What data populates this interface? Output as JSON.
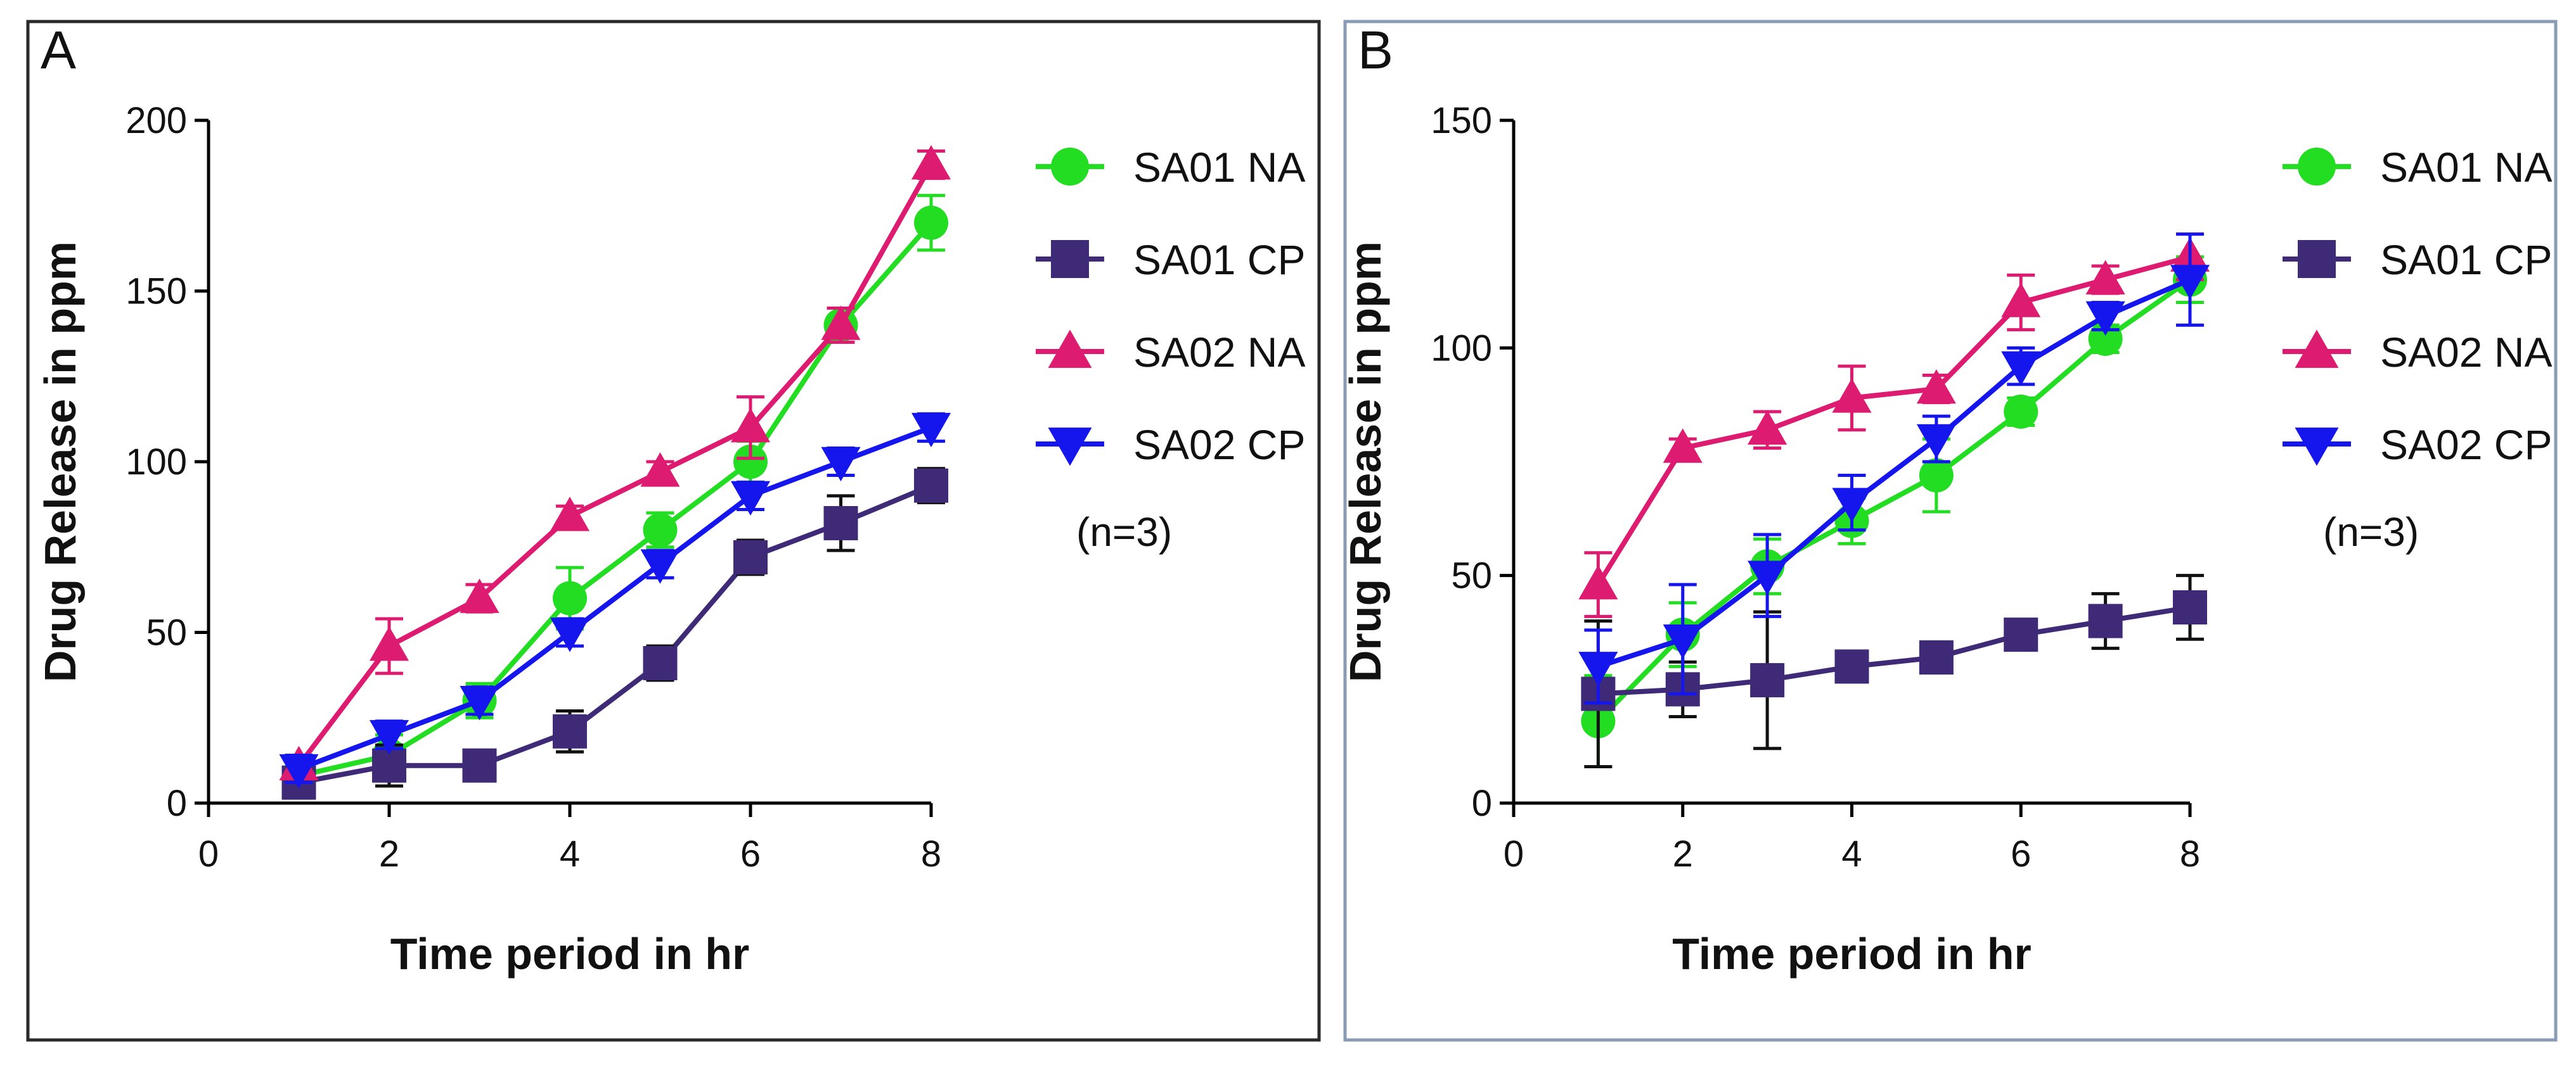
{
  "chart_data": [
    {
      "type": "line",
      "panel_label": "A",
      "xlabel": "Time period in hr",
      "ylabel": "Drug Release in ppm",
      "xlim": [
        0,
        8
      ],
      "ylim": [
        0,
        200
      ],
      "xticks": [
        0,
        2,
        4,
        6,
        8
      ],
      "yticks": [
        0,
        50,
        100,
        150,
        200
      ],
      "legend_position": "right",
      "note": "(n=3)",
      "series": [
        {
          "name": "SA01 NA",
          "color": "#22dd22",
          "marker": "circle",
          "x": [
            1,
            2,
            3,
            4,
            5,
            6,
            7,
            8
          ],
          "y": [
            8,
            14,
            30,
            60,
            80,
            100,
            140,
            170
          ],
          "err": [
            5,
            6,
            5,
            9,
            5,
            6,
            5,
            8
          ]
        },
        {
          "name": "SA01 CP",
          "color": "#3f2a78",
          "marker": "square",
          "x": [
            1,
            2,
            3,
            4,
            5,
            6,
            7,
            8
          ],
          "y": [
            6,
            11,
            11,
            21,
            41,
            72,
            82,
            93
          ],
          "err": [
            3,
            6,
            4,
            6,
            5,
            5,
            8,
            5
          ]
        },
        {
          "name": "SA02 NA",
          "color": "#dd1b70",
          "marker": "triangle-up",
          "x": [
            1,
            2,
            3,
            4,
            5,
            6,
            7,
            8
          ],
          "y": [
            11,
            46,
            60,
            84,
            97,
            110,
            140,
            187
          ],
          "err": [
            3,
            8,
            4,
            3,
            3,
            9,
            5,
            4
          ]
        },
        {
          "name": "SA02 CP",
          "color": "#1515ee",
          "marker": "triangle-down",
          "x": [
            1,
            2,
            3,
            4,
            5,
            6,
            7,
            8
          ],
          "y": [
            10,
            20,
            30,
            50,
            70,
            90,
            100,
            110
          ],
          "err": [
            4,
            4,
            4,
            4,
            4,
            4,
            4,
            4
          ]
        }
      ]
    },
    {
      "type": "line",
      "panel_label": "B",
      "xlabel": "Time period in hr",
      "ylabel": "Drug Release in ppm",
      "xlim": [
        0,
        8
      ],
      "ylim": [
        0,
        150
      ],
      "xticks": [
        0,
        2,
        4,
        6,
        8
      ],
      "yticks": [
        0,
        50,
        100,
        150
      ],
      "legend_position": "right",
      "note": "(n=3)",
      "series": [
        {
          "name": "SA01 NA",
          "color": "#22dd22",
          "marker": "circle",
          "x": [
            1,
            2,
            3,
            4,
            5,
            6,
            7,
            8
          ],
          "y": [
            18,
            37,
            52,
            62,
            72,
            86,
            102,
            115
          ],
          "err": [
            10,
            7,
            6,
            5,
            8,
            3,
            3,
            5
          ]
        },
        {
          "name": "SA01 CP",
          "color": "#3f2a78",
          "marker": "square",
          "x": [
            1,
            2,
            3,
            4,
            5,
            6,
            7,
            8
          ],
          "y": [
            24,
            25,
            27,
            30,
            32,
            37,
            40,
            43
          ],
          "err": [
            16,
            6,
            15,
            3,
            3,
            3,
            6,
            7
          ]
        },
        {
          "name": "SA02 NA",
          "color": "#dd1b70",
          "marker": "triangle-up",
          "x": [
            1,
            2,
            3,
            4,
            5,
            6,
            7,
            8
          ],
          "y": [
            48,
            78,
            82,
            89,
            91,
            110,
            115,
            120
          ],
          "err": [
            7,
            2,
            4,
            7,
            3,
            6,
            3,
            5
          ]
        },
        {
          "name": "SA02 CP",
          "color": "#1515ee",
          "marker": "triangle-down",
          "x": [
            1,
            2,
            3,
            4,
            5,
            6,
            7,
            8
          ],
          "y": [
            30,
            36,
            50,
            66,
            80,
            96,
            107,
            115
          ],
          "err": [
            8,
            12,
            9,
            6,
            5,
            4,
            3,
            10
          ]
        }
      ]
    }
  ]
}
